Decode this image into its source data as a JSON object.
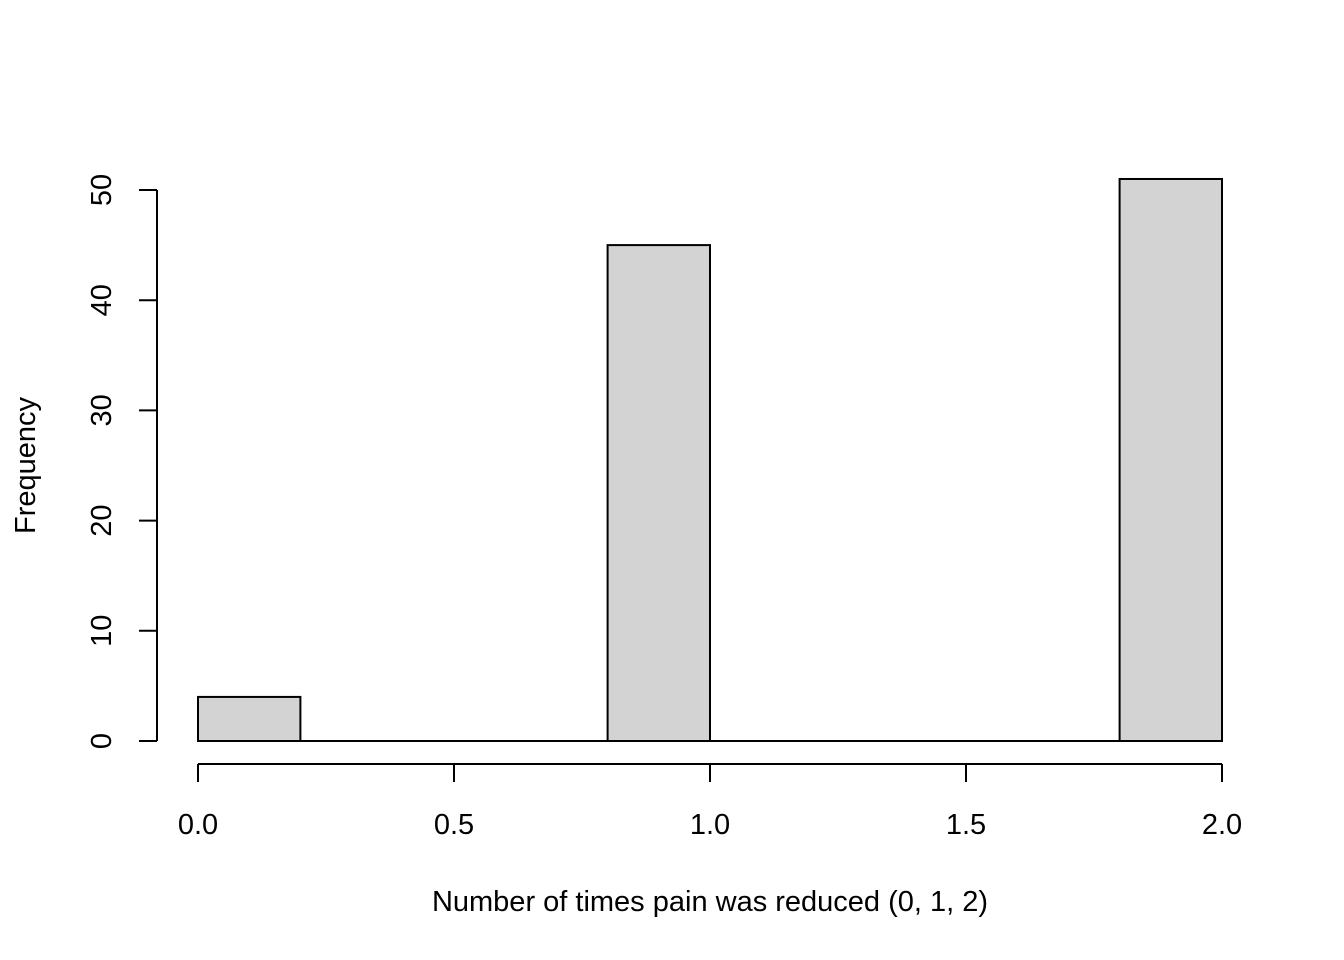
{
  "chart_data": {
    "type": "bar",
    "title": "",
    "xlabel": "Number of times pain was reduced (0, 1, 2)",
    "ylabel": "Frequency",
    "bins": [
      {
        "start": 0.0,
        "end": 0.2,
        "count": 4
      },
      {
        "start": 0.2,
        "end": 0.4,
        "count": 0
      },
      {
        "start": 0.4,
        "end": 0.6,
        "count": 0
      },
      {
        "start": 0.6,
        "end": 0.8,
        "count": 0
      },
      {
        "start": 0.8,
        "end": 1.0,
        "count": 45
      },
      {
        "start": 1.0,
        "end": 1.2,
        "count": 0
      },
      {
        "start": 1.2,
        "end": 1.4,
        "count": 0
      },
      {
        "start": 1.4,
        "end": 1.6,
        "count": 0
      },
      {
        "start": 1.6,
        "end": 1.8,
        "count": 0
      },
      {
        "start": 1.8,
        "end": 2.0,
        "count": 51
      }
    ],
    "x_ticks": [
      "0.0",
      "0.5",
      "1.0",
      "1.5",
      "2.0"
    ],
    "y_ticks": [
      "0",
      "10",
      "20",
      "30",
      "40",
      "50"
    ],
    "xlim": [
      0.0,
      2.0
    ],
    "ylim": [
      0,
      50
    ],
    "grid": false,
    "bar_color": "#d3d3d3",
    "edge_color": "#000000"
  }
}
